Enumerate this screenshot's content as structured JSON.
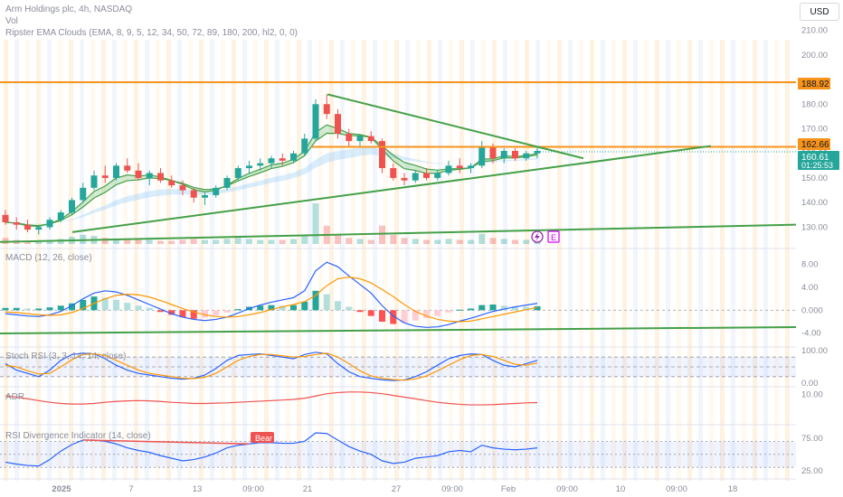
{
  "header": {
    "title": "Arm Holdings plc, 4h, NASDAQ",
    "vol": "Vol",
    "ema_clouds": "Ripster EMA Clouds (EMA, 8, 9, 5, 12, 34, 50, 72, 89, 180, 200, hl2, 0, 0)"
  },
  "currency_button": "USD",
  "colors": {
    "up": "#26a69a",
    "down": "#ef5350",
    "orange": "#f7931a",
    "trend": "#43a047",
    "blue": "#2962ff",
    "macd_signal": "#ff9800",
    "price_badge": "#26a69a"
  },
  "panes": {
    "macd": {
      "label": "MACD (12, 26, close)",
      "ticks": [
        "8.00",
        "4.00",
        "0.000",
        "-4.00"
      ]
    },
    "stoch": {
      "label": "Stoch RSI (3, 3, 14, 14, close)",
      "ticks": [
        "100.00",
        "0.00"
      ]
    },
    "adr": {
      "label": "ADR",
      "ticks": [
        "10.00"
      ]
    },
    "rsi": {
      "label": "RSI Divergence Indicator (14, close)",
      "ticks": [
        "75.00",
        "25.00"
      ],
      "bear_label": "Bear"
    }
  },
  "levels": {
    "resistance": "188.92",
    "breakout": "162.66",
    "last_price": "160.61",
    "countdown": "01:25:53"
  },
  "events": {
    "earnings": "E"
  },
  "x_axis": [
    "2025",
    "7",
    "13",
    "09:00",
    "21",
    "27",
    "09:00",
    "Feb",
    "09:00",
    "10",
    "09:00",
    "18"
  ],
  "chart_data": {
    "type": "candlestick",
    "y_ticks": [
      130,
      140,
      150,
      160,
      170,
      180,
      200,
      210
    ],
    "ylim": [
      125,
      215
    ],
    "horizontal_levels": [
      188.92,
      162.66
    ],
    "last_price": 160.61,
    "candles": [
      {
        "o": 135,
        "h": 137,
        "l": 131,
        "c": 132
      },
      {
        "o": 132,
        "h": 134,
        "l": 129,
        "c": 131
      },
      {
        "o": 131,
        "h": 133,
        "l": 128,
        "c": 129
      },
      {
        "o": 129,
        "h": 131,
        "l": 127,
        "c": 130
      },
      {
        "o": 130,
        "h": 134,
        "l": 129,
        "c": 133
      },
      {
        "o": 133,
        "h": 137,
        "l": 132,
        "c": 136
      },
      {
        "o": 136,
        "h": 142,
        "l": 135,
        "c": 141
      },
      {
        "o": 141,
        "h": 148,
        "l": 140,
        "c": 146
      },
      {
        "o": 146,
        "h": 153,
        "l": 145,
        "c": 151
      },
      {
        "o": 151,
        "h": 155,
        "l": 148,
        "c": 150
      },
      {
        "o": 150,
        "h": 156,
        "l": 149,
        "c": 155
      },
      {
        "o": 155,
        "h": 158,
        "l": 152,
        "c": 153
      },
      {
        "o": 153,
        "h": 156,
        "l": 149,
        "c": 150
      },
      {
        "o": 150,
        "h": 153,
        "l": 147,
        "c": 152
      },
      {
        "o": 152,
        "h": 154,
        "l": 148,
        "c": 149
      },
      {
        "o": 149,
        "h": 151,
        "l": 146,
        "c": 147
      },
      {
        "o": 147,
        "h": 149,
        "l": 143,
        "c": 145
      },
      {
        "o": 145,
        "h": 146,
        "l": 140,
        "c": 142
      },
      {
        "o": 142,
        "h": 144,
        "l": 139,
        "c": 143
      },
      {
        "o": 143,
        "h": 147,
        "l": 142,
        "c": 146
      },
      {
        "o": 146,
        "h": 151,
        "l": 145,
        "c": 150
      },
      {
        "o": 150,
        "h": 155,
        "l": 149,
        "c": 154
      },
      {
        "o": 154,
        "h": 157,
        "l": 152,
        "c": 155
      },
      {
        "o": 155,
        "h": 158,
        "l": 153,
        "c": 156
      },
      {
        "o": 156,
        "h": 159,
        "l": 154,
        "c": 158
      },
      {
        "o": 158,
        "h": 160,
        "l": 155,
        "c": 157
      },
      {
        "o": 157,
        "h": 161,
        "l": 156,
        "c": 160
      },
      {
        "o": 160,
        "h": 168,
        "l": 159,
        "c": 166
      },
      {
        "o": 166,
        "h": 182,
        "l": 165,
        "c": 180
      },
      {
        "o": 180,
        "h": 184,
        "l": 174,
        "c": 176
      },
      {
        "o": 176,
        "h": 178,
        "l": 166,
        "c": 168
      },
      {
        "o": 168,
        "h": 170,
        "l": 163,
        "c": 165
      },
      {
        "o": 165,
        "h": 168,
        "l": 163,
        "c": 167
      },
      {
        "o": 167,
        "h": 169,
        "l": 164,
        "c": 165
      },
      {
        "o": 165,
        "h": 166,
        "l": 152,
        "c": 154
      },
      {
        "o": 154,
        "h": 156,
        "l": 149,
        "c": 150
      },
      {
        "o": 150,
        "h": 152,
        "l": 147,
        "c": 149
      },
      {
        "o": 149,
        "h": 153,
        "l": 148,
        "c": 152
      },
      {
        "o": 152,
        "h": 154,
        "l": 149,
        "c": 150
      },
      {
        "o": 150,
        "h": 153,
        "l": 149,
        "c": 152
      },
      {
        "o": 152,
        "h": 157,
        "l": 151,
        "c": 155
      },
      {
        "o": 155,
        "h": 158,
        "l": 152,
        "c": 154
      },
      {
        "o": 154,
        "h": 156,
        "l": 152,
        "c": 155
      },
      {
        "o": 155,
        "h": 165,
        "l": 154,
        "c": 163
      },
      {
        "o": 163,
        "h": 164,
        "l": 156,
        "c": 158
      },
      {
        "o": 158,
        "h": 162,
        "l": 156,
        "c": 161
      },
      {
        "o": 161,
        "h": 162,
        "l": 157,
        "c": 158
      },
      {
        "o": 158,
        "h": 161,
        "l": 157,
        "c": 160
      },
      {
        "o": 160,
        "h": 163,
        "l": 158,
        "c": 161
      }
    ],
    "volume": [
      6,
      4,
      3,
      3,
      4,
      5,
      7,
      9,
      8,
      6,
      5,
      4,
      4,
      4,
      3,
      3,
      4,
      5,
      4,
      4,
      5,
      6,
      5,
      4,
      4,
      4,
      5,
      9,
      40,
      18,
      9,
      6,
      5,
      4,
      18,
      9,
      6,
      5,
      4,
      4,
      5,
      4,
      4,
      10,
      6,
      5,
      4,
      4,
      5
    ],
    "macd": {
      "ticks": [
        8,
        4,
        0,
        -4
      ],
      "ylim": [
        -5,
        10
      ],
      "histogram": [
        0.4,
        0.4,
        0.3,
        0.3,
        0.5,
        0.8,
        1.2,
        1.8,
        2.4,
        2.2,
        1.8,
        1.3,
        0.8,
        0.4,
        -0.3,
        -0.8,
        -1.2,
        -1.5,
        -1.3,
        -0.9,
        -0.4,
        0.2,
        0.6,
        0.8,
        0.9,
        0.8,
        0.9,
        1.5,
        3.4,
        2.8,
        1.6,
        0.6,
        -0.3,
        -1.0,
        -2.0,
        -2.4,
        -2.2,
        -1.8,
        -1.4,
        -1.0,
        -0.4,
        0.1,
        0.3,
        0.9,
        1.0,
        0.8,
        0.7,
        0.6,
        0.7
      ],
      "macd_line": [
        -0.6,
        -0.8,
        -1.0,
        -1.1,
        -0.8,
        -0.2,
        0.8,
        2.0,
        3.0,
        3.4,
        3.2,
        2.6,
        1.8,
        1.0,
        0.2,
        -0.6,
        -1.2,
        -1.6,
        -1.8,
        -1.6,
        -1.2,
        -0.5,
        0.3,
        0.9,
        1.4,
        1.8,
        2.2,
        3.4,
        6.9,
        8.4,
        7.6,
        6.0,
        4.5,
        3.0,
        0.8,
        -1.0,
        -2.2,
        -2.8,
        -3.0,
        -2.9,
        -2.5,
        -1.9,
        -1.4,
        -0.8,
        -0.2,
        0.2,
        0.6,
        0.9,
        1.2
      ],
      "signal_line": [
        -0.3,
        -0.4,
        -0.6,
        -0.8,
        -0.9,
        -0.8,
        -0.4,
        0.3,
        1.2,
        2.0,
        2.6,
        2.8,
        2.7,
        2.3,
        1.7,
        1.0,
        0.3,
        -0.3,
        -0.8,
        -1.1,
        -1.2,
        -1.1,
        -0.8,
        -0.4,
        0.1,
        0.6,
        1.0,
        1.5,
        2.6,
        4.3,
        5.5,
        5.8,
        5.5,
        4.8,
        3.6,
        2.4,
        1.0,
        -0.2,
        -1.0,
        -1.6,
        -1.9,
        -2.0,
        -1.9,
        -1.5,
        -1.1,
        -0.7,
        -0.3,
        0.1,
        0.5
      ]
    },
    "stoch_rsi": {
      "ticks": [
        100,
        0
      ],
      "ylim": [
        0,
        100
      ],
      "k": [
        60,
        40,
        30,
        20,
        40,
        70,
        88,
        92,
        90,
        75,
        55,
        40,
        30,
        25,
        20,
        15,
        12,
        15,
        25,
        45,
        70,
        85,
        88,
        90,
        85,
        80,
        75,
        88,
        95,
        90,
        60,
        35,
        20,
        15,
        10,
        8,
        10,
        20,
        35,
        55,
        75,
        85,
        90,
        88,
        70,
        55,
        50,
        60,
        70
      ],
      "d": [
        55,
        50,
        38,
        28,
        30,
        50,
        72,
        88,
        90,
        85,
        70,
        55,
        40,
        30,
        25,
        20,
        15,
        14,
        18,
        30,
        50,
        70,
        82,
        88,
        88,
        84,
        80,
        82,
        88,
        92,
        80,
        60,
        38,
        22,
        15,
        11,
        9,
        13,
        22,
        38,
        55,
        72,
        85,
        88,
        82,
        70,
        58,
        55,
        62
      ]
    },
    "adr": {
      "ticks": [
        10
      ],
      "ylim": [
        0,
        12
      ],
      "values": [
        9.5,
        9.0,
        8.4,
        7.8,
        7.2,
        6.8,
        6.6,
        6.6,
        6.8,
        7.2,
        7.5,
        7.7,
        7.8,
        7.7,
        7.5,
        7.2,
        7.0,
        6.8,
        6.8,
        6.9,
        7.0,
        7.2,
        7.4,
        7.6,
        7.8,
        8.0,
        8.2,
        8.6,
        9.4,
        10.2,
        10.6,
        10.8,
        10.8,
        10.6,
        10.2,
        9.6,
        9.0,
        8.4,
        7.8,
        7.2,
        6.8,
        6.5,
        6.3,
        6.3,
        6.4,
        6.6,
        6.8,
        7.0,
        7.1
      ]
    },
    "rsi": {
      "ticks": [
        75,
        25
      ],
      "ylim": [
        15,
        90
      ],
      "values": [
        38,
        35,
        33,
        32,
        42,
        55,
        65,
        72,
        72,
        70,
        66,
        60,
        56,
        53,
        48,
        44,
        40,
        42,
        46,
        52,
        60,
        64,
        66,
        68,
        68,
        67,
        67,
        70,
        83,
        82,
        72,
        62,
        55,
        50,
        40,
        36,
        38,
        44,
        46,
        48,
        54,
        56,
        54,
        64,
        60,
        58,
        57,
        58,
        60
      ]
    }
  }
}
